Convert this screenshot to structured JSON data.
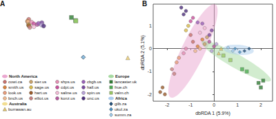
{
  "chart_data": [
    {
      "type": "scatter",
      "title": "A",
      "xlim": [
        -180,
        180
      ],
      "ylim": [
        -60,
        85
      ],
      "tick_labels": false,
      "grid": false,
      "legend": "bottom",
      "groups": [
        {
          "name": "North America",
          "color": "#eaa6cf"
        },
        {
          "name": "Europe",
          "color": "#a6d9a0"
        },
        {
          "name": "Africa",
          "color": "#abcdee"
        },
        {
          "name": "Australia",
          "color": "#f2de92"
        }
      ],
      "series": [
        {
          "name": "cowi.ca",
          "group": "North America",
          "color": "#c8716c",
          "marker": "circle",
          "values": [
            [
              -120,
              50
            ]
          ]
        },
        {
          "name": "smith.us",
          "group": "North America",
          "color": "#d9823b",
          "marker": "circle",
          "values": [
            [
              -123.5,
              46
            ]
          ]
        },
        {
          "name": "look.us",
          "group": "North America",
          "color": "#e89c7a",
          "marker": "circle",
          "values": [
            [
              -122,
              44
            ]
          ]
        },
        {
          "name": "bnch.us",
          "group": "North America",
          "color": "#f0b98f",
          "marker": "circle",
          "values": [
            [
              -121.5,
              45
            ]
          ]
        },
        {
          "name": "sier.us",
          "group": "North America",
          "color": "#c9a36b",
          "marker": "circle",
          "values": [
            [
              -121,
              39
            ]
          ]
        },
        {
          "name": "sage.us",
          "group": "North America",
          "color": "#d8b94a",
          "marker": "circle",
          "values": [
            [
              -119,
              38
            ]
          ]
        },
        {
          "name": "hart.us",
          "group": "North America",
          "color": "#9a5a2a",
          "marker": "circle",
          "values": [
            [
              -120,
              36.5
            ]
          ]
        },
        {
          "name": "elliot.us",
          "group": "North America",
          "color": "#c7807f",
          "marker": "circle",
          "values": [
            [
              -117,
              33
            ]
          ]
        },
        {
          "name": "shps.us",
          "group": "North America",
          "color": "#e58fb4",
          "marker": "circle",
          "values": [
            [
              -112,
              44
            ]
          ]
        },
        {
          "name": "cdpt.us",
          "group": "North America",
          "color": "#c94f9b",
          "marker": "circle",
          "values": [
            [
              -106,
              40.5
            ]
          ]
        },
        {
          "name": "saline.us",
          "group": "North America",
          "color": "#f2bcd6",
          "marker": "circle",
          "values": [
            [
              -106,
              34.5
            ]
          ]
        },
        {
          "name": "konz.us",
          "group": "North America",
          "color": "#b5589e",
          "marker": "circle",
          "values": [
            [
              -96.6,
              39.1
            ]
          ]
        },
        {
          "name": "cbgb.us",
          "group": "North America",
          "color": "#9a60b8",
          "marker": "circle",
          "values": [
            [
              -93,
              41.6
            ]
          ]
        },
        {
          "name": "hall.us",
          "group": "North America",
          "color": "#7b4aa0",
          "marker": "circle",
          "values": [
            [
              -84,
              43
            ]
          ]
        },
        {
          "name": "spin.us",
          "group": "North America",
          "color": "#b9a2d8",
          "marker": "circle",
          "values": [
            [
              -85,
              38
            ]
          ]
        },
        {
          "name": "unc.us",
          "group": "North America",
          "color": "#4b2c7a",
          "marker": "circle",
          "values": [
            [
              -79,
              36
            ]
          ]
        },
        {
          "name": "lancaster.uk",
          "group": "Europe",
          "color": "#2e7d32",
          "marker": "square",
          "values": [
            [
              -2.8,
              54
            ]
          ]
        },
        {
          "name": "frue.ch",
          "group": "Europe",
          "color": "#4caf50",
          "marker": "square",
          "values": [
            [
              8.5,
              47.5
            ]
          ]
        },
        {
          "name": "valm.ch",
          "group": "Europe",
          "color": "#9ccc65",
          "marker": "square",
          "values": [
            [
              9.5,
              46.6
            ]
          ]
        },
        {
          "name": "gilb.za",
          "group": "Africa",
          "color": "#1f4e79",
          "marker": "diamond",
          "values": [
            [
              30,
              -30
            ]
          ]
        },
        {
          "name": "ukul.za",
          "group": "Africa",
          "color": "#4a90c2",
          "marker": "diamond",
          "values": [
            [
              29.5,
              -29.7
            ]
          ]
        },
        {
          "name": "summ.za",
          "group": "Africa",
          "color": "#9cc9e8",
          "marker": "diamond",
          "values": [
            [
              30.3,
              -29.8
            ]
          ]
        },
        {
          "name": "burrawan.au",
          "group": "Australia",
          "color": "#e8c86a",
          "marker": "triangle",
          "values": [
            [
              152,
              -31
            ]
          ]
        }
      ]
    },
    {
      "type": "scatter",
      "title": "B",
      "x_label": "dbRDA 1 (5.9%)",
      "y_label": "dbRDA 2 (5.1%)",
      "xlim": [
        -2.6,
        2.5
      ],
      "ylim": [
        -2.3,
        1.95
      ],
      "xticks": [
        -2,
        -1,
        0,
        1,
        2
      ],
      "yticks": [
        -2,
        -1,
        0,
        1
      ],
      "grid": false,
      "ellipses": [
        {
          "group": "North America",
          "center": [
            -0.9,
            -0.1
          ],
          "semi_axes": [
            2.25,
            0.5
          ],
          "angle": 65
        },
        {
          "group": "Europe",
          "center": [
            0.95,
            -0.55
          ],
          "semi_axes": [
            1.7,
            0.3
          ],
          "angle": -30
        },
        {
          "group": "Africa",
          "center": [
            1.05,
            -0.05
          ],
          "semi_axes": [
            0.65,
            0.22
          ],
          "angle": -5
        }
      ],
      "series": [
        {
          "name": "cowi.ca",
          "color": "#c8716c",
          "marker": "circle",
          "values": [
            [
              -0.9,
              0.3
            ],
            [
              -1.0,
              0.6
            ]
          ]
        },
        {
          "name": "smith.us",
          "color": "#d9823b",
          "marker": "circle",
          "values": [
            [
              -0.7,
              0.1
            ],
            [
              -0.5,
              0.4
            ]
          ]
        },
        {
          "name": "look.us",
          "color": "#e89c7a",
          "marker": "circle",
          "values": [
            [
              -1.6,
              -0.6
            ],
            [
              -1.5,
              -0.4
            ]
          ]
        },
        {
          "name": "bnch.us",
          "color": "#f0b98f",
          "marker": "circle",
          "values": [
            [
              -0.6,
              0.0
            ],
            [
              -0.8,
              -0.1
            ]
          ]
        },
        {
          "name": "sier.us",
          "color": "#c9a36b",
          "marker": "circle",
          "values": [
            [
              -0.4,
              0.2
            ],
            [
              -0.3,
              0.5
            ]
          ]
        },
        {
          "name": "sage.us",
          "color": "#d8b94a",
          "marker": "circle",
          "values": [
            [
              -1.2,
              0.8
            ],
            [
              -1.1,
              1.0
            ]
          ]
        },
        {
          "name": "hart.us",
          "color": "#9a5a2a",
          "marker": "circle",
          "values": [
            [
              -2.3,
              -1.9
            ],
            [
              -2.2,
              -1.7
            ],
            [
              -2.1,
              -2.0
            ]
          ]
        },
        {
          "name": "elliot.us",
          "color": "#c7807f",
          "marker": "circle",
          "values": [
            [
              -1.8,
              -0.9
            ],
            [
              -1.7,
              -1.1
            ]
          ]
        },
        {
          "name": "shps.us",
          "color": "#e58fb4",
          "marker": "circle",
          "values": [
            [
              -1.3,
              -0.2
            ],
            [
              -1.2,
              0.0
            ]
          ]
        },
        {
          "name": "cdpt.us",
          "color": "#c94f9b",
          "marker": "circle",
          "values": [
            [
              -1.0,
              1.2
            ],
            [
              -0.9,
              1.35
            ]
          ]
        },
        {
          "name": "saline.us",
          "color": "#f2bcd6",
          "marker": "circle",
          "values": [
            [
              -0.6,
              0.7
            ],
            [
              -0.4,
              0.9
            ]
          ]
        },
        {
          "name": "konz.us",
          "color": "#b5589e",
          "marker": "circle",
          "values": [
            [
              -0.2,
              0.3
            ],
            [
              0.0,
              0.1
            ]
          ]
        },
        {
          "name": "cbgb.us",
          "color": "#9a60b8",
          "marker": "circle",
          "values": [
            [
              -0.5,
              1.1
            ],
            [
              -0.7,
              1.15
            ]
          ]
        },
        {
          "name": "hall.us",
          "color": "#7b4aa0",
          "marker": "circle",
          "values": [
            [
              -0.2,
              0.6
            ],
            [
              -0.1,
              0.8
            ]
          ]
        },
        {
          "name": "spin.us",
          "color": "#b9a2d8",
          "marker": "circle",
          "values": [
            [
              0.1,
              0.2
            ],
            [
              -0.1,
              -0.1
            ]
          ]
        },
        {
          "name": "unc.us",
          "color": "#4b2c7a",
          "marker": "circle",
          "values": [
            [
              -1.4,
              1.8
            ],
            [
              -1.2,
              1.65
            ],
            [
              -1.3,
              1.5
            ]
          ]
        },
        {
          "name": "lancaster.uk",
          "color": "#2e7d32",
          "marker": "square",
          "values": [
            [
              1.9,
              -1.5
            ],
            [
              2.1,
              -1.4
            ],
            [
              2.0,
              -1.7
            ]
          ]
        },
        {
          "name": "frue.ch",
          "color": "#4caf50",
          "marker": "square",
          "values": [
            [
              1.2,
              -0.9
            ],
            [
              1.4,
              -1.0
            ]
          ]
        },
        {
          "name": "valm.ch",
          "color": "#9ccc65",
          "marker": "square",
          "values": [
            [
              0.4,
              -0.3
            ],
            [
              0.7,
              -0.5
            ]
          ]
        },
        {
          "name": "gilb.za",
          "color": "#1f4e79",
          "marker": "diamond",
          "values": [
            [
              1.3,
              -0.1
            ],
            [
              1.5,
              0.0
            ]
          ]
        },
        {
          "name": "ukul.za",
          "color": "#4a90c2",
          "marker": "diamond",
          "values": [
            [
              0.9,
              0.0
            ],
            [
              1.1,
              -0.15
            ]
          ]
        },
        {
          "name": "summ.za",
          "color": "#9cc9e8",
          "marker": "diamond",
          "values": [
            [
              0.6,
              0.05
            ],
            [
              0.8,
              -0.1
            ]
          ]
        },
        {
          "name": "burrawan.au",
          "color": "#e8c86a",
          "marker": "triangle",
          "values": [
            [
              0.2,
              -0.2
            ],
            [
              0.3,
              0.0
            ]
          ]
        }
      ]
    }
  ]
}
